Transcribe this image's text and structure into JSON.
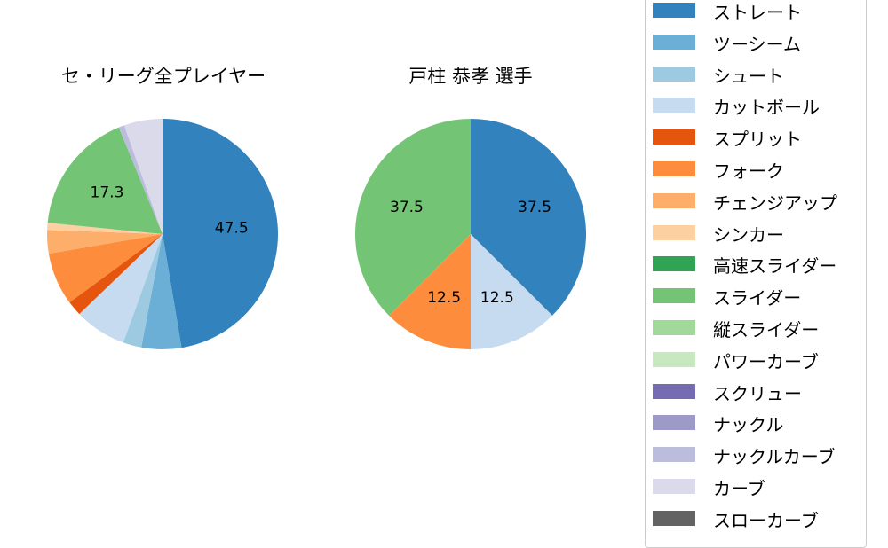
{
  "chart_data": [
    {
      "type": "pie",
      "title": "セ・リーグ全プレイヤー",
      "start_angle": 90,
      "direction": "clockwise",
      "slices": [
        {
          "label": "ストレート",
          "value": 47.5,
          "color": "#3182bd",
          "show_label": true
        },
        {
          "label": "ツーシーム",
          "value": 5.6,
          "color": "#6baed6",
          "show_label": false
        },
        {
          "label": "シュート",
          "value": 2.6,
          "color": "#9ecae1",
          "show_label": false
        },
        {
          "label": "カットボール",
          "value": 7.3,
          "color": "#c6dbef",
          "show_label": false
        },
        {
          "label": "スプリット",
          "value": 2.1,
          "color": "#e6550d",
          "show_label": false
        },
        {
          "label": "フォーク",
          "value": 7.4,
          "color": "#fd8d3c",
          "show_label": false
        },
        {
          "label": "チェンジアップ",
          "value": 3.3,
          "color": "#fdae6b",
          "show_label": false
        },
        {
          "label": "シンカー",
          "value": 1.0,
          "color": "#fdd0a2",
          "show_label": false
        },
        {
          "label": "スライダー",
          "value": 17.3,
          "color": "#74c476",
          "show_label": true
        },
        {
          "label": "ナックルカーブ",
          "value": 0.8,
          "color": "#bcbddc",
          "show_label": false
        },
        {
          "label": "カーブ",
          "value": 5.4,
          "color": "#dadaeb",
          "show_label": false
        }
      ]
    },
    {
      "type": "pie",
      "title": "戸柱 恭孝  選手",
      "start_angle": 90,
      "direction": "clockwise",
      "slices": [
        {
          "label": "ストレート",
          "value": 37.5,
          "color": "#3182bd",
          "show_label": true
        },
        {
          "label": "カットボール",
          "value": 12.5,
          "color": "#c6dbef",
          "show_label": true
        },
        {
          "label": "フォーク",
          "value": 12.5,
          "color": "#fd8d3c",
          "show_label": true
        },
        {
          "label": "スライダー",
          "value": 37.5,
          "color": "#74c476",
          "show_label": true
        }
      ]
    }
  ],
  "titles": {
    "left": "セ・リーグ全プレイヤー",
    "right": "戸柱 恭孝  選手"
  },
  "legend": [
    {
      "label": "ストレート",
      "color": "#3182bd"
    },
    {
      "label": "ツーシーム",
      "color": "#6baed6"
    },
    {
      "label": "シュート",
      "color": "#9ecae1"
    },
    {
      "label": "カットボール",
      "color": "#c6dbef"
    },
    {
      "label": "スプリット",
      "color": "#e6550d"
    },
    {
      "label": "フォーク",
      "color": "#fd8d3c"
    },
    {
      "label": "チェンジアップ",
      "color": "#fdae6b"
    },
    {
      "label": "シンカー",
      "color": "#fdd0a2"
    },
    {
      "label": "高速スライダー",
      "color": "#31a354"
    },
    {
      "label": "スライダー",
      "color": "#74c476"
    },
    {
      "label": "縦スライダー",
      "color": "#a1d99b"
    },
    {
      "label": "パワーカーブ",
      "color": "#c7e9c0"
    },
    {
      "label": "スクリュー",
      "color": "#756bb1"
    },
    {
      "label": "ナックル",
      "color": "#9e9ac8"
    },
    {
      "label": "ナックルカーブ",
      "color": "#bcbddc"
    },
    {
      "label": "カーブ",
      "color": "#dadaeb"
    },
    {
      "label": "スローカーブ",
      "color": "#636363"
    }
  ]
}
